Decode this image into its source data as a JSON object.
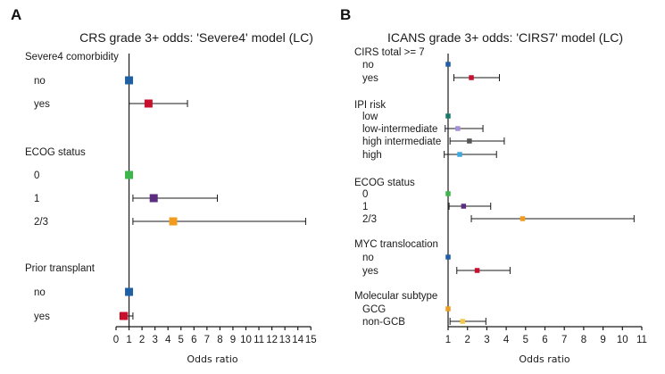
{
  "chart_data": [
    {
      "panel": "A",
      "type": "forest",
      "title": "CRS grade 3+ odds: 'Severe4' model (LC)",
      "xlabel": "Odds ratio",
      "xlim": [
        0,
        15
      ],
      "xticks": [
        0,
        1,
        2,
        3,
        4,
        5,
        6,
        7,
        8,
        9,
        10,
        11,
        12,
        13,
        14,
        15
      ],
      "reference_line": 1,
      "groups": [
        {
          "name": "Severe4 comorbidity",
          "items": [
            {
              "label": "no",
              "or": 1.0,
              "lo": 1.0,
              "hi": 1.0,
              "color": "#1f5fa3"
            },
            {
              "label": "yes",
              "or": 2.5,
              "lo": 1.0,
              "hi": 5.5,
              "color": "#c8102e"
            }
          ]
        },
        {
          "name": "ECOG status",
          "items": [
            {
              "label": "0",
              "or": 1.0,
              "lo": 1.0,
              "hi": 1.0,
              "color": "#3cb54a"
            },
            {
              "label": "1",
              "or": 2.9,
              "lo": 1.3,
              "hi": 7.8,
              "color": "#5b2c7f"
            },
            {
              "label": "2/3",
              "or": 4.4,
              "lo": 1.3,
              "hi": 14.6,
              "color": "#f29c1f"
            }
          ]
        },
        {
          "name": "Prior transplant",
          "items": [
            {
              "label": "no",
              "or": 1.0,
              "lo": 1.0,
              "hi": 1.0,
              "color": "#1f5fa3"
            },
            {
              "label": "yes",
              "or": 0.6,
              "lo": 0.3,
              "hi": 1.3,
              "color": "#c8102e"
            }
          ]
        }
      ]
    },
    {
      "panel": "B",
      "type": "forest",
      "title": "ICANS grade 3+ odds: 'CIRS7' model (LC)",
      "xlabel": "Odds ratio",
      "xlim": [
        1,
        11
      ],
      "xticks": [
        1,
        2,
        3,
        4,
        5,
        6,
        7,
        8,
        9,
        10,
        11
      ],
      "reference_line": 1,
      "groups": [
        {
          "name": "CIRS total >= 7",
          "items": [
            {
              "label": "no",
              "or": 1.0,
              "lo": 1.0,
              "hi": 1.0,
              "color": "#1f5fa3"
            },
            {
              "label": "yes",
              "or": 2.2,
              "lo": 1.3,
              "hi": 3.65,
              "color": "#c8102e"
            }
          ]
        },
        {
          "name": "IPI risk",
          "items": [
            {
              "label": "low",
              "or": 1.0,
              "lo": 1.0,
              "hi": 1.0,
              "color": "#1a7a6a"
            },
            {
              "label": "low-intermediate",
              "or": 1.5,
              "lo": 0.85,
              "hi": 2.8,
              "color": "#a58fd6"
            },
            {
              "label": "high intermediate",
              "or": 2.1,
              "lo": 1.1,
              "hi": 3.9,
              "color": "#555555"
            },
            {
              "label": "high",
              "or": 1.6,
              "lo": 0.8,
              "hi": 3.5,
              "color": "#3fa9e0"
            }
          ]
        },
        {
          "name": "ECOG status",
          "items": [
            {
              "label": "0",
              "or": 1.0,
              "lo": 1.0,
              "hi": 1.0,
              "color": "#3cb54a"
            },
            {
              "label": "1",
              "or": 1.8,
              "lo": 1.05,
              "hi": 3.2,
              "color": "#5b2c7f"
            },
            {
              "label": "2/3",
              "or": 4.85,
              "lo": 2.2,
              "hi": 10.6,
              "color": "#f29c1f"
            }
          ]
        },
        {
          "name": "MYC translocation",
          "items": [
            {
              "label": "no",
              "or": 1.0,
              "lo": 1.0,
              "hi": 1.0,
              "color": "#1f5fa3"
            },
            {
              "label": "yes",
              "or": 2.5,
              "lo": 1.45,
              "hi": 4.2,
              "color": "#c8102e"
            }
          ]
        },
        {
          "name": "Molecular subtype",
          "items": [
            {
              "label": "GCG",
              "or": 1.0,
              "lo": 1.0,
              "hi": 1.0,
              "color": "#f29c1f"
            },
            {
              "label": "non-GCB",
              "or": 1.75,
              "lo": 1.1,
              "hi": 2.95,
              "color": "#f7c948"
            }
          ]
        }
      ]
    }
  ]
}
